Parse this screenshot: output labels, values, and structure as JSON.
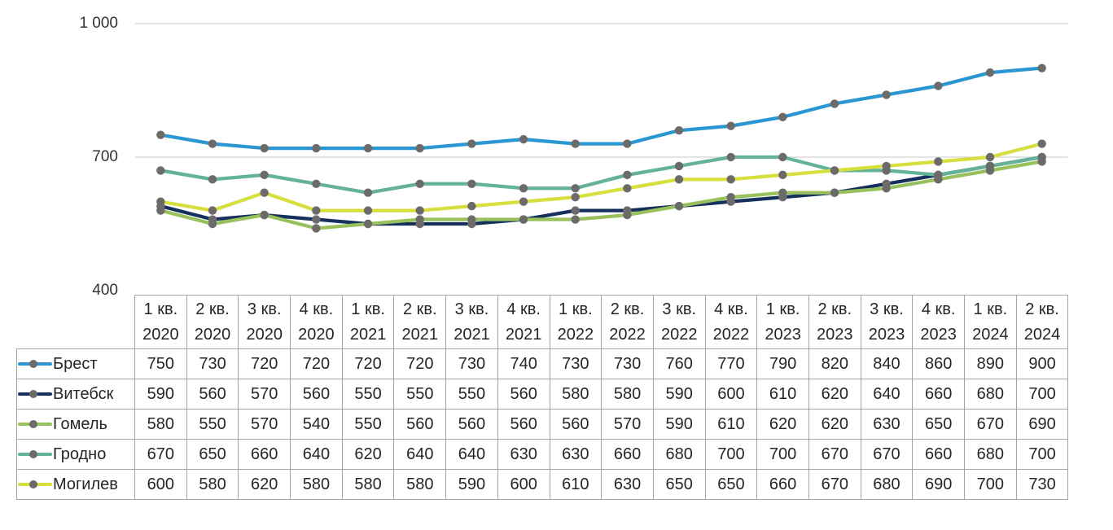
{
  "chart_data": {
    "type": "line",
    "title": "",
    "xlabel": "",
    "ylabel": "",
    "grid": "horizontal-only",
    "legend_position": "table-left-column",
    "categories": [
      {
        "q": "1 кв.",
        "year": "2020"
      },
      {
        "q": "2 кв.",
        "year": "2020"
      },
      {
        "q": "3 кв.",
        "year": "2020"
      },
      {
        "q": "4 кв.",
        "year": "2020"
      },
      {
        "q": "1 кв.",
        "year": "2021"
      },
      {
        "q": "2 кв.",
        "year": "2021"
      },
      {
        "q": "3 кв.",
        "year": "2021"
      },
      {
        "q": "4 кв.",
        "year": "2021"
      },
      {
        "q": "1 кв.",
        "year": "2022"
      },
      {
        "q": "2 кв.",
        "year": "2022"
      },
      {
        "q": "3 кв.",
        "year": "2022"
      },
      {
        "q": "4 кв.",
        "year": "2022"
      },
      {
        "q": "1 кв.",
        "year": "2023"
      },
      {
        "q": "2 кв.",
        "year": "2023"
      },
      {
        "q": "3 кв.",
        "year": "2023"
      },
      {
        "q": "4 кв.",
        "year": "2023"
      },
      {
        "q": "1 кв.",
        "year": "2024"
      },
      {
        "q": "2 кв.",
        "year": "2024"
      }
    ],
    "series": [
      {
        "name": "Брест",
        "color": "#2b97d2",
        "values": [
          750,
          730,
          720,
          720,
          720,
          720,
          730,
          740,
          730,
          730,
          760,
          770,
          790,
          820,
          840,
          860,
          890,
          900
        ]
      },
      {
        "name": "Витебск",
        "color": "#16305e",
        "values": [
          590,
          560,
          570,
          560,
          550,
          550,
          550,
          560,
          580,
          580,
          590,
          600,
          610,
          620,
          640,
          660,
          680,
          700
        ]
      },
      {
        "name": "Гомель",
        "color": "#98c05c",
        "values": [
          580,
          550,
          570,
          540,
          550,
          560,
          560,
          560,
          560,
          570,
          590,
          610,
          620,
          620,
          630,
          650,
          670,
          690
        ]
      },
      {
        "name": "Гродно",
        "color": "#64b29a",
        "values": [
          670,
          650,
          660,
          640,
          620,
          640,
          640,
          630,
          630,
          660,
          680,
          700,
          700,
          670,
          670,
          660,
          680,
          700
        ]
      },
      {
        "name": "Могилев",
        "color": "#d7df3f",
        "values": [
          600,
          580,
          620,
          580,
          580,
          580,
          590,
          600,
          610,
          630,
          650,
          650,
          660,
          670,
          680,
          690,
          700,
          730
        ]
      }
    ],
    "y_axis": {
      "min": 400,
      "max": 1000,
      "ticks": [
        {
          "label": "1 000",
          "value": 1000,
          "gridline": true
        },
        {
          "label": "700",
          "value": 700,
          "gridline": true
        },
        {
          "label": "400",
          "value": 400,
          "gridline": false
        }
      ]
    },
    "marker_color": "#6d6a6a",
    "gridline_color": "#d2d2d2",
    "table_border_color": "#a6a6a6"
  }
}
